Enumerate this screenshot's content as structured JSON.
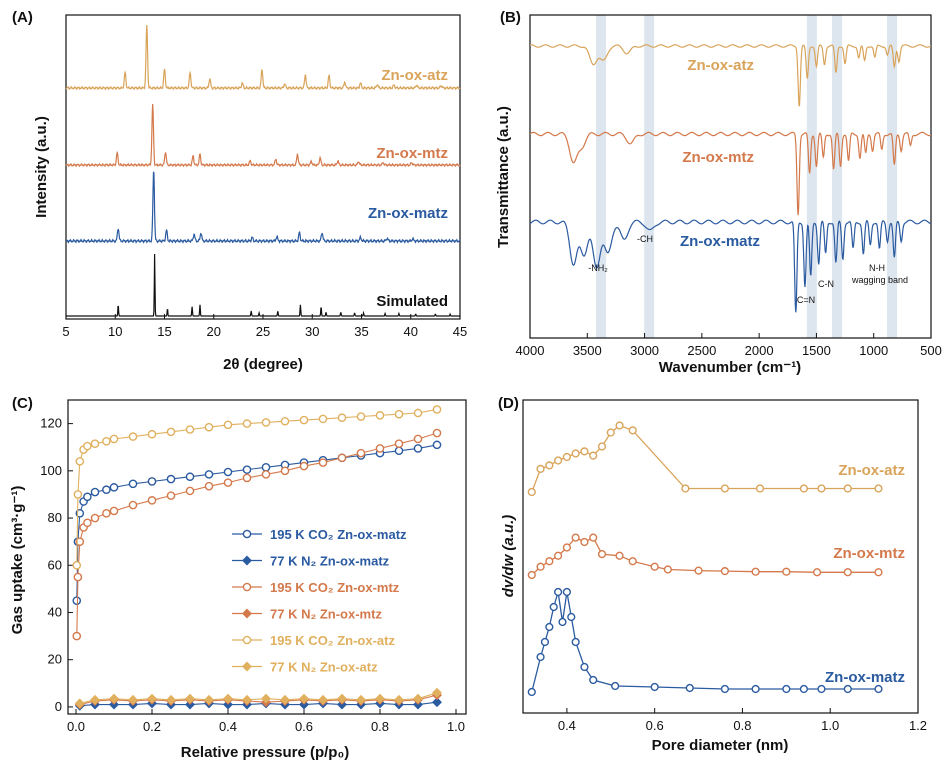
{
  "chart_data": [
    {
      "panel": "(A)",
      "type": "line",
      "xlabel": "2θ (degree)",
      "ylabel": "Intensity (a.u.)",
      "xlim": [
        5,
        45
      ],
      "xticks": [
        "5",
        "10",
        "15",
        "20",
        "25",
        "30",
        "35",
        "40",
        "45"
      ],
      "series": [
        {
          "name": "Zn-ox-atz",
          "color": "#d9a45a",
          "peaks": [
            [
              11.0,
              0.25
            ],
            [
              13.2,
              1.0
            ],
            [
              15.0,
              0.3
            ],
            [
              17.6,
              0.25
            ],
            [
              19.6,
              0.15
            ],
            [
              22.9,
              0.08
            ],
            [
              24.9,
              0.3
            ],
            [
              27.2,
              0.07
            ],
            [
              29.3,
              0.22
            ],
            [
              31.7,
              0.2
            ],
            [
              33.3,
              0.1
            ],
            [
              34.9,
              0.08
            ],
            [
              36.6,
              0.06
            ],
            [
              38.3,
              0.05
            ],
            [
              40.6,
              0.05
            ],
            [
              43.1,
              0.04
            ]
          ]
        },
        {
          "name": "Zn-ox-mtz",
          "color": "#d4794b",
          "peaks": [
            [
              10.2,
              0.2
            ],
            [
              13.8,
              1.0
            ],
            [
              15.1,
              0.22
            ],
            [
              17.9,
              0.15
            ],
            [
              18.6,
              0.18
            ],
            [
              23.7,
              0.07
            ],
            [
              26.3,
              0.1
            ],
            [
              28.5,
              0.18
            ],
            [
              29.9,
              0.06
            ],
            [
              30.8,
              0.12
            ],
            [
              32.6,
              0.07
            ],
            [
              34.7,
              0.06
            ],
            [
              37.2,
              0.04
            ],
            [
              40.1,
              0.04
            ]
          ]
        },
        {
          "name": "Zn-ox-matz",
          "color": "#2a5aa0",
          "peaks": [
            [
              10.3,
              0.18
            ],
            [
              13.9,
              1.0
            ],
            [
              15.2,
              0.15
            ],
            [
              18.0,
              0.1
            ],
            [
              18.7,
              0.12
            ],
            [
              23.9,
              0.05
            ],
            [
              26.4,
              0.06
            ],
            [
              28.7,
              0.12
            ],
            [
              31.0,
              0.12
            ],
            [
              34.9,
              0.05
            ],
            [
              37.6,
              0.04
            ],
            [
              40.2,
              0.03
            ]
          ]
        },
        {
          "name": "Simulated",
          "color": "#111111",
          "peaks": [
            [
              10.3,
              0.18
            ],
            [
              14.0,
              1.0
            ],
            [
              15.3,
              0.12
            ],
            [
              17.8,
              0.15
            ],
            [
              18.6,
              0.18
            ],
            [
              23.8,
              0.08
            ],
            [
              24.6,
              0.05
            ],
            [
              26.5,
              0.08
            ],
            [
              28.8,
              0.18
            ],
            [
              30.9,
              0.15
            ],
            [
              31.4,
              0.06
            ],
            [
              32.9,
              0.06
            ],
            [
              34.3,
              0.05
            ],
            [
              35.2,
              0.05
            ],
            [
              37.4,
              0.04
            ],
            [
              38.8,
              0.04
            ],
            [
              40.5,
              0.03
            ],
            [
              42.5,
              0.03
            ],
            [
              44.0,
              0.03
            ]
          ]
        }
      ]
    },
    {
      "panel": "(B)",
      "type": "line",
      "xlabel": "Wavenumber (cm⁻¹)",
      "ylabel": "Transmittance (a.u.)",
      "xlim": [
        4000,
        500
      ],
      "xticks": [
        "4000",
        "3500",
        "3000",
        "2500",
        "2000",
        "1500",
        "1000",
        "500"
      ],
      "highlight_bands": [
        3380,
        2960,
        1540,
        1320,
        840
      ],
      "annotations": [
        "-NH₂",
        "-CH",
        "C=N",
        "C-N",
        "N-H",
        "wagging band"
      ],
      "series": [
        {
          "name": "Zn-ox-atz",
          "color": "#d9a45a",
          "bands": [
            [
              3450,
              0.3
            ],
            [
              3360,
              0.25
            ],
            [
              3150,
              0.12
            ],
            [
              1650,
              1.0
            ],
            [
              1580,
              0.55
            ],
            [
              1500,
              0.35
            ],
            [
              1430,
              0.3
            ],
            [
              1330,
              0.45
            ],
            [
              1250,
              0.3
            ],
            [
              1130,
              0.2
            ],
            [
              1080,
              0.25
            ],
            [
              990,
              0.2
            ],
            [
              880,
              0.15
            ],
            [
              820,
              0.35
            ],
            [
              780,
              0.25
            ]
          ]
        },
        {
          "name": "Zn-ox-mtz",
          "color": "#d4794b",
          "bands": [
            [
              3620,
              0.35
            ],
            [
              3550,
              0.15
            ],
            [
              3120,
              0.12
            ],
            [
              1660,
              1.0
            ],
            [
              1560,
              0.5
            ],
            [
              1500,
              0.4
            ],
            [
              1440,
              0.3
            ],
            [
              1350,
              0.45
            ],
            [
              1290,
              0.4
            ],
            [
              1220,
              0.35
            ],
            [
              1120,
              0.3
            ],
            [
              1070,
              0.25
            ],
            [
              1010,
              0.2
            ],
            [
              930,
              0.2
            ],
            [
              820,
              0.4
            ],
            [
              760,
              0.2
            ],
            [
              680,
              0.15
            ]
          ]
        },
        {
          "name": "Zn-ox-matz",
          "color": "#2a5aa0",
          "bands": [
            [
              3620,
              0.45
            ],
            [
              3530,
              0.35
            ],
            [
              3420,
              0.5
            ],
            [
              3320,
              0.35
            ],
            [
              3180,
              0.2
            ],
            [
              2950,
              0.1
            ],
            [
              1680,
              1.0
            ],
            [
              1600,
              0.7
            ],
            [
              1550,
              0.6
            ],
            [
              1480,
              0.45
            ],
            [
              1420,
              0.35
            ],
            [
              1330,
              0.45
            ],
            [
              1270,
              0.4
            ],
            [
              1180,
              0.3
            ],
            [
              1090,
              0.35
            ],
            [
              1030,
              0.25
            ],
            [
              950,
              0.3
            ],
            [
              880,
              0.2
            ],
            [
              820,
              0.4
            ],
            [
              760,
              0.2
            ]
          ]
        }
      ]
    },
    {
      "panel": "(C)",
      "type": "line",
      "xlabel": "Relative pressure (p/p₀)",
      "ylabel": "Gas uptake (cm³·g⁻¹)",
      "xlim": [
        0.0,
        1.0
      ],
      "ylim": [
        -3,
        130
      ],
      "xticks": [
        "0.0",
        "0.2",
        "0.4",
        "0.6",
        "0.8",
        "1.0"
      ],
      "yticks": [
        "0",
        "20",
        "40",
        "60",
        "80",
        "100",
        "120"
      ],
      "legend_position": "middle-right",
      "series": [
        {
          "name": "195 K CO₂ Zn-ox-matz",
          "color": "#2a5aa0",
          "marker": "circle",
          "x": [
            0.002,
            0.005,
            0.01,
            0.02,
            0.03,
            0.05,
            0.08,
            0.1,
            0.15,
            0.2,
            0.25,
            0.3,
            0.35,
            0.4,
            0.45,
            0.5,
            0.55,
            0.6,
            0.65,
            0.7,
            0.75,
            0.8,
            0.85,
            0.9,
            0.95
          ],
          "y": [
            45,
            70,
            82,
            87,
            89,
            91,
            92,
            93,
            94.5,
            95.5,
            96.5,
            97.5,
            98.5,
            99.5,
            100.5,
            101.5,
            102.5,
            103.5,
            104.5,
            105.5,
            106.5,
            107.5,
            108.5,
            109.5,
            111
          ]
        },
        {
          "name": "77 K N₂ Zn-ox-matz",
          "color": "#2a5aa0",
          "marker": "diamond",
          "x": [
            0.01,
            0.05,
            0.1,
            0.15,
            0.2,
            0.25,
            0.3,
            0.35,
            0.4,
            0.45,
            0.5,
            0.55,
            0.6,
            0.65,
            0.7,
            0.75,
            0.8,
            0.85,
            0.9,
            0.95
          ],
          "y": [
            0.5,
            1,
            1,
            1,
            1.5,
            1,
            1,
            1.5,
            1,
            1,
            1.5,
            1,
            1,
            1.5,
            1,
            1,
            1.5,
            1,
            1,
            2
          ]
        },
        {
          "name": "195 K CO₂ Zn-ox-mtz",
          "color": "#d4794b",
          "marker": "circle",
          "x": [
            0.002,
            0.005,
            0.01,
            0.02,
            0.03,
            0.05,
            0.08,
            0.1,
            0.15,
            0.2,
            0.25,
            0.3,
            0.35,
            0.4,
            0.45,
            0.5,
            0.55,
            0.6,
            0.65,
            0.7,
            0.75,
            0.8,
            0.85,
            0.9,
            0.95
          ],
          "y": [
            30,
            55,
            70,
            76,
            78,
            80,
            82,
            83,
            85.5,
            87.5,
            89.5,
            91.5,
            93.5,
            95,
            97,
            98.5,
            100,
            102,
            103.5,
            105.5,
            107.5,
            109.5,
            111.5,
            113.5,
            116
          ]
        },
        {
          "name": "77 K N₂ Zn-ox-mtz",
          "color": "#d4794b",
          "marker": "diamond",
          "x": [
            0.01,
            0.05,
            0.1,
            0.15,
            0.2,
            0.25,
            0.3,
            0.35,
            0.4,
            0.45,
            0.5,
            0.55,
            0.6,
            0.65,
            0.7,
            0.75,
            0.8,
            0.85,
            0.9,
            0.95
          ],
          "y": [
            1,
            2.5,
            3,
            2.5,
            3,
            2.5,
            3,
            2.5,
            3,
            2.5,
            2,
            2.5,
            3,
            2.5,
            3,
            2.5,
            3,
            2.5,
            3,
            5
          ]
        },
        {
          "name": "195 K CO₂ Zn-ox-atz",
          "color": "#e0b05e",
          "marker": "circle",
          "x": [
            0.002,
            0.005,
            0.01,
            0.02,
            0.03,
            0.05,
            0.08,
            0.1,
            0.15,
            0.2,
            0.25,
            0.3,
            0.35,
            0.4,
            0.45,
            0.5,
            0.55,
            0.6,
            0.65,
            0.7,
            0.75,
            0.8,
            0.85,
            0.9,
            0.95
          ],
          "y": [
            60,
            90,
            104,
            109,
            110.5,
            111.5,
            112.5,
            113.5,
            114.5,
            115.5,
            116.5,
            117.5,
            118.5,
            119.5,
            120,
            120.5,
            121,
            121.5,
            122,
            122.5,
            123,
            123.5,
            124,
            124.5,
            126
          ]
        },
        {
          "name": "77 K N₂ Zn-ox-atz",
          "color": "#e0b05e",
          "marker": "diamond",
          "x": [
            0.01,
            0.05,
            0.1,
            0.15,
            0.2,
            0.25,
            0.3,
            0.35,
            0.4,
            0.45,
            0.5,
            0.55,
            0.6,
            0.65,
            0.7,
            0.75,
            0.8,
            0.85,
            0.9,
            0.95
          ],
          "y": [
            1.5,
            3,
            3.5,
            3,
            3.5,
            3,
            3.5,
            3,
            3.5,
            3,
            3.5,
            3,
            3.5,
            3,
            3.5,
            3,
            3.5,
            3,
            3.5,
            6
          ]
        }
      ]
    },
    {
      "panel": "(D)",
      "type": "line",
      "xlabel": "Pore diameter (nm)",
      "ylabel": "dv/dw (a.u.)",
      "xlim": [
        0.3,
        1.2
      ],
      "xticks": [
        "0.4",
        "0.6",
        "0.8",
        "1.0",
        "1.2"
      ],
      "series": [
        {
          "name": "Zn-ox-atz",
          "color": "#d9a45a",
          "x": [
            0.32,
            0.34,
            0.36,
            0.38,
            0.4,
            0.42,
            0.44,
            0.46,
            0.48,
            0.5,
            0.52,
            0.55,
            0.67,
            0.76,
            0.84,
            0.94,
            0.98,
            1.04,
            1.11
          ],
          "y": [
            0.0,
            0.33,
            0.38,
            0.45,
            0.5,
            0.55,
            0.58,
            0.52,
            0.65,
            0.85,
            0.95,
            0.88,
            0.05,
            0.05,
            0.05,
            0.05,
            0.05,
            0.05,
            0.05
          ]
        },
        {
          "name": "Zn-ox-mtz",
          "color": "#d4794b",
          "x": [
            0.32,
            0.34,
            0.36,
            0.38,
            0.4,
            0.42,
            0.44,
            0.46,
            0.48,
            0.52,
            0.55,
            0.6,
            0.63,
            0.7,
            0.76,
            0.83,
            0.9,
            0.97,
            1.04,
            1.11
          ],
          "y": [
            0.0,
            0.15,
            0.25,
            0.35,
            0.5,
            0.68,
            0.6,
            0.68,
            0.38,
            0.35,
            0.25,
            0.15,
            0.1,
            0.08,
            0.07,
            0.06,
            0.06,
            0.05,
            0.05,
            0.05
          ]
        },
        {
          "name": "Zn-ox-matz",
          "color": "#2a5aa0",
          "x": [
            0.32,
            0.34,
            0.35,
            0.36,
            0.37,
            0.38,
            0.39,
            0.4,
            0.41,
            0.42,
            0.44,
            0.46,
            0.51,
            0.6,
            0.68,
            0.76,
            0.83,
            0.9,
            0.94,
            0.98,
            1.04,
            1.11
          ],
          "y": [
            0.0,
            0.35,
            0.5,
            0.65,
            0.85,
            1.0,
            0.7,
            1.0,
            0.75,
            0.5,
            0.25,
            0.12,
            0.06,
            0.05,
            0.04,
            0.03,
            0.03,
            0.03,
            0.03,
            0.03,
            0.03,
            0.03
          ]
        }
      ]
    }
  ]
}
